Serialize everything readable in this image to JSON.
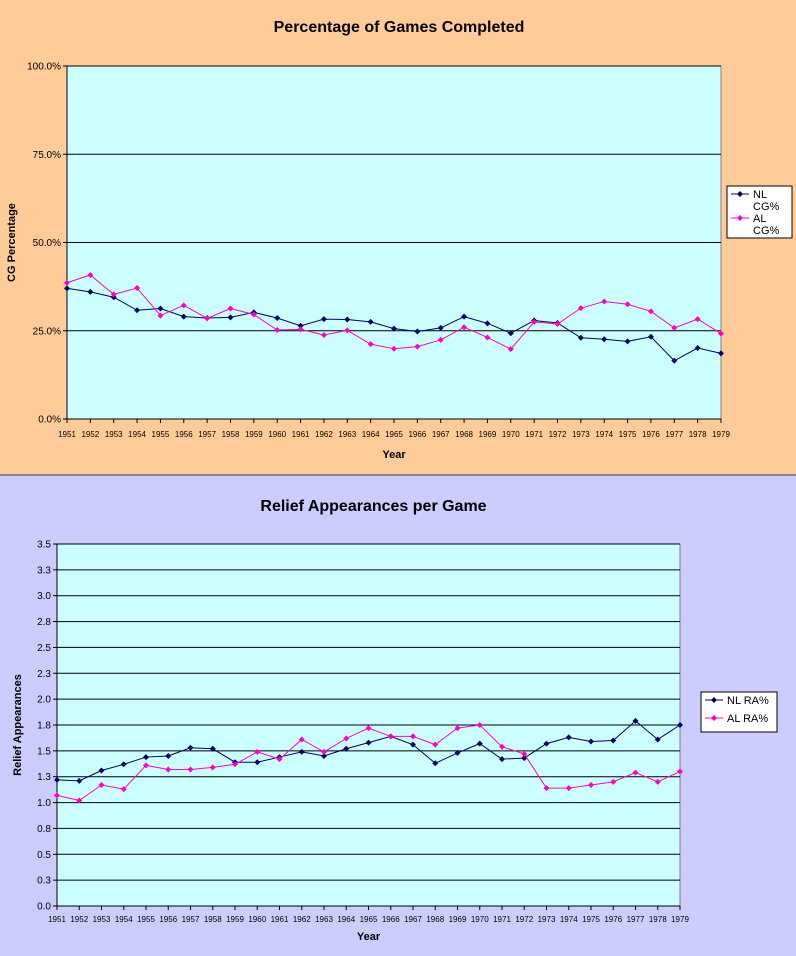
{
  "chart_data": [
    {
      "type": "line",
      "title": "Percentage of Games Completed",
      "xlabel": "Year",
      "ylabel": "CG Percentage",
      "ylim": [
        0,
        100
      ],
      "yticks": [
        "0.0%",
        "25.0%",
        "50.0%",
        "75.0%",
        "100.0%"
      ],
      "ytick_values": [
        0,
        25,
        50,
        75,
        100
      ],
      "grid": true,
      "legend_position": "right",
      "plot_background": "#ccffff",
      "panel_background": "#ffcc99",
      "categories": [
        "1951",
        "1952",
        "1953",
        "1954",
        "1955",
        "1956",
        "1957",
        "1958",
        "1959",
        "1960",
        "1961",
        "1962",
        "1963",
        "1964",
        "1965",
        "1966",
        "1967",
        "1968",
        "1969",
        "1970",
        "1971",
        "1972",
        "1973",
        "1974",
        "1975",
        "1976",
        "1977",
        "1978",
        "1979"
      ],
      "series": [
        {
          "name": "NL CG%",
          "legend_lines": [
            "NL",
            "CG%"
          ],
          "color": "#000066",
          "values": [
            37.0,
            36.0,
            34.5,
            30.8,
            31.3,
            29.0,
            28.6,
            28.8,
            30.2,
            28.6,
            26.4,
            28.3,
            28.2,
            27.5,
            25.6,
            24.8,
            25.8,
            29.0,
            27.1,
            24.3,
            27.9,
            27.2,
            23.0,
            22.6,
            22.0,
            23.3,
            16.5,
            20.1,
            18.6
          ]
        },
        {
          "name": "AL CG%",
          "legend_lines": [
            "AL",
            "CG%"
          ],
          "color": "#ff00cc",
          "values": [
            38.6,
            40.8,
            35.3,
            37.1,
            29.3,
            32.2,
            28.5,
            31.3,
            29.6,
            25.2,
            25.4,
            23.8,
            25.1,
            21.2,
            19.9,
            20.5,
            22.4,
            26.0,
            23.1,
            19.8,
            27.5,
            26.9,
            31.4,
            33.3,
            32.5,
            30.5,
            25.8,
            28.3,
            24.2
          ]
        }
      ]
    },
    {
      "type": "line",
      "title": "Relief Appearances per Game",
      "xlabel": "Year",
      "ylabel": "Relief Appearances",
      "ylim": [
        0,
        3.5
      ],
      "yticks": [
        "0.0",
        "0.3",
        "0.5",
        "0.8",
        "1.0",
        "1.3",
        "1.5",
        "1.8",
        "2.0",
        "2.3",
        "2.5",
        "2.8",
        "3.0",
        "3.3",
        "3.5"
      ],
      "ytick_values": [
        0,
        0.25,
        0.5,
        0.75,
        1.0,
        1.25,
        1.5,
        1.75,
        2.0,
        2.25,
        2.5,
        2.75,
        3.0,
        3.25,
        3.5
      ],
      "grid": true,
      "legend_position": "right",
      "plot_background": "#ccffff",
      "panel_background": "#ccccff",
      "categories": [
        "1951",
        "1952",
        "1953",
        "1954",
        "1955",
        "1956",
        "1957",
        "1958",
        "1959",
        "1960",
        "1961",
        "1962",
        "1963",
        "1964",
        "1965",
        "1966",
        "1967",
        "1968",
        "1969",
        "1970",
        "1971",
        "1972",
        "1973",
        "1974",
        "1975",
        "1976",
        "1977",
        "1978",
        "1979"
      ],
      "series": [
        {
          "name": "NL RA%",
          "legend_lines": [
            "NL RA%"
          ],
          "color": "#000066",
          "values": [
            1.22,
            1.21,
            1.31,
            1.37,
            1.44,
            1.45,
            1.53,
            1.52,
            1.39,
            1.39,
            1.44,
            1.49,
            1.45,
            1.52,
            1.58,
            1.64,
            1.56,
            1.38,
            1.48,
            1.57,
            1.42,
            1.43,
            1.57,
            1.63,
            1.59,
            1.6,
            1.79,
            1.61,
            1.75
          ]
        },
        {
          "name": "AL RA%",
          "legend_lines": [
            "AL RA%"
          ],
          "color": "#ff00cc",
          "values": [
            1.07,
            1.02,
            1.17,
            1.13,
            1.36,
            1.32,
            1.32,
            1.34,
            1.37,
            1.49,
            1.42,
            1.61,
            1.49,
            1.62,
            1.72,
            1.64,
            1.64,
            1.56,
            1.72,
            1.75,
            1.54,
            1.47,
            1.14,
            1.14,
            1.17,
            1.2,
            1.29,
            1.2,
            1.3
          ]
        }
      ]
    }
  ]
}
